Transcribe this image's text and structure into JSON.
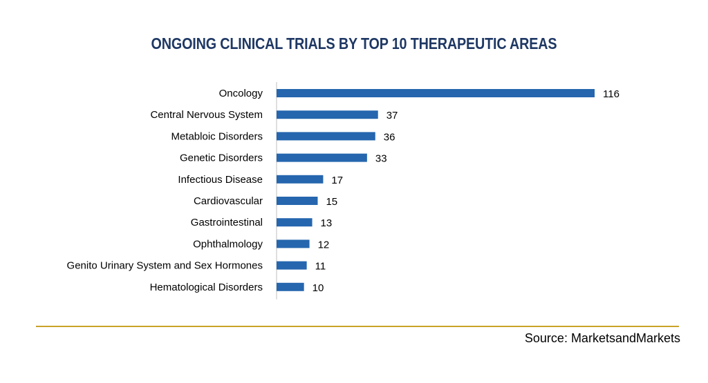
{
  "chart_data": {
    "type": "bar",
    "orientation": "horizontal",
    "title": "ONGOING CLINICAL TRIALS BY TOP 10 THERAPEUTIC AREAS",
    "categories": [
      "Oncology",
      "Central Nervous System",
      "Metabloic Disorders",
      "Genetic Disorders",
      "Infectious Disease",
      "Cardiovascular",
      "Gastrointestinal",
      "Ophthalmology",
      "Genito Urinary System and Sex Hormones",
      "Hematological Disorders"
    ],
    "values": [
      116,
      37,
      36,
      33,
      17,
      15,
      13,
      12,
      11,
      10
    ],
    "data_labels": [
      "116",
      "37",
      "36",
      "33",
      "17",
      "15",
      "13",
      "12",
      "11",
      "10"
    ],
    "xlabel": "",
    "ylabel": "",
    "xlim": [
      0,
      116
    ],
    "grid": false,
    "legend": "none",
    "colors": {
      "bar": "#2566ae",
      "title": "#1f3864",
      "axis": "#bfbfbf",
      "divider": "#c9a227"
    }
  },
  "footer": {
    "source": "Source:  MarketsandMarkets"
  }
}
